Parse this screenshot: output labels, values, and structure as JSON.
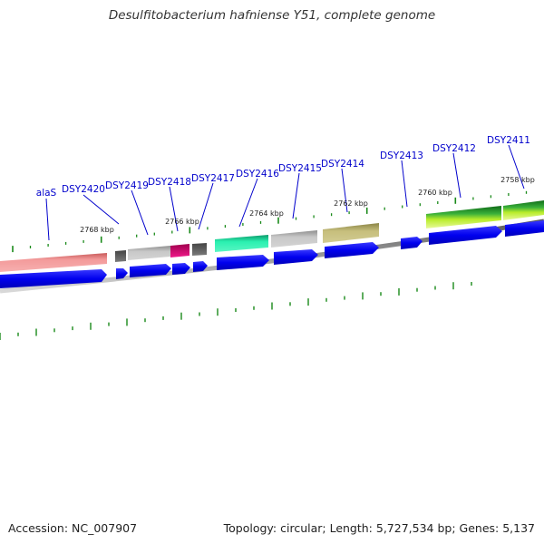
{
  "title": "Desulfitobacterium hafniense Y51, complete genome",
  "footer": {
    "accession": "Accession: NC_007907",
    "summary": "Topology: circular; Length: 5,727,534 bp; Genes: 5,137"
  },
  "colors": {
    "label": "#0000cc",
    "cds": "#0000ee",
    "tick": "#1a8a1a",
    "backbone": "#888888"
  },
  "kbp_marks": [
    "2768 kbp",
    "2766 kbp",
    "2764 kbp",
    "2762 kbp",
    "2760 kbp",
    "2758 kbp"
  ],
  "genes": [
    {
      "label": "alaS",
      "color": "#f08a8a"
    },
    {
      "label": "DSY2420",
      "color": "#6e6e6e"
    },
    {
      "label": "DSY2419",
      "color": "#bdbdbd"
    },
    {
      "label": "DSY2418",
      "color": "#e0107e"
    },
    {
      "label": "DSY2417",
      "color": "#6e6e6e"
    },
    {
      "label": "DSY2416",
      "color": "#22e8a8"
    },
    {
      "label": "DSY2415",
      "color": "#bdbdbd"
    },
    {
      "label": "DSY2414",
      "color": "#c4bc78"
    },
    {
      "label": "DSY2413",
      "color": ""
    },
    {
      "label": "DSY2412",
      "color": "#2a9a2a"
    },
    {
      "label": "DSY2411",
      "color": "#2a9a2a"
    }
  ]
}
